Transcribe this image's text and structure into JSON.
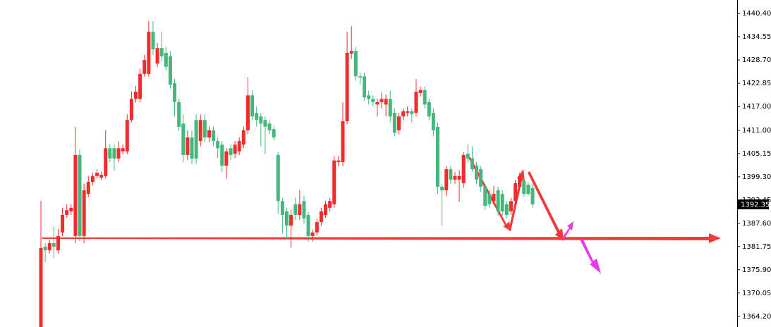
{
  "chart_data": {
    "type": "candlestick",
    "up_color": "#f22b2b",
    "down_color": "#45b77d",
    "ylim": [
      1361.5,
      1443.8
    ],
    "yticks": [
      {
        "value": 1440.4,
        "label": "1440.40"
      },
      {
        "value": 1434.55,
        "label": "1434.55"
      },
      {
        "value": 1428.7,
        "label": "1428.70"
      },
      {
        "value": 1422.85,
        "label": "1422.85"
      },
      {
        "value": 1417,
        "label": "1417.00"
      },
      {
        "value": 1411,
        "label": "1411.00"
      },
      {
        "value": 1405.15,
        "label": "1405.15"
      },
      {
        "value": 1399.3,
        "label": "1399.30"
      },
      {
        "value": 1393.45,
        "label": "1393.45"
      },
      {
        "value": 1387.6,
        "label": "1387.60"
      },
      {
        "value": 1381.75,
        "label": "1381.75"
      },
      {
        "value": 1375.9,
        "label": "1375.90"
      },
      {
        "value": 1370.05,
        "label": "1370.05"
      },
      {
        "value": 1364.2,
        "label": "1364.20"
      }
    ],
    "open": [
      1361.5,
      1381.7,
      1380.8,
      1382.6,
      1380.8,
      1385.3,
      1389.7,
      1390.6,
      1384.4,
      1404.8,
      1384.4,
      1395.0,
      1398.0,
      1399.5,
      1399.1,
      1399.5,
      1406.5,
      1406.5,
      1403.9,
      1405.7,
      1405.7,
      1413.6,
      1418.9,
      1418.9,
      1425.2,
      1425.2,
      1435.8,
      1427.8,
      1431.7,
      1430.5,
      1429.6,
      1422.9,
      1418.1,
      1412.7,
      1404.8,
      1409.2,
      1413.6,
      1408.3,
      1413.6,
      1409.2,
      1411.0,
      1408.3,
      1407.4,
      1402.1,
      1406.5,
      1405.1,
      1405.7,
      1407.4,
      1411.0,
      1419.8,
      1415.4,
      1414.5,
      1413.6,
      1412.7,
      1411.3,
      1404.8,
      1393.2,
      1390.6,
      1387.0,
      1392.4,
      1389.7,
      1393.2,
      1389.7,
      1384.4,
      1385.3,
      1387.9,
      1389.7,
      1391.5,
      1392.4,
      1403.0,
      1403.0,
      1413.3,
      1430.3,
      1431.0,
      1424.6,
      1424.6,
      1419.8,
      1418.9,
      1417.5,
      1418.1,
      1417.5,
      1418.9,
      1415.4,
      1411.0,
      1414.5,
      1415.4,
      1415.8,
      1415.4,
      1420.4,
      1421.1,
      1418.1,
      1415.4,
      1411.9,
      1396.8,
      1395.9,
      1401.2,
      1398.6,
      1398.6,
      1397.7,
      1405.1,
      1403.9,
      1402.1,
      1401.2,
      1396.8,
      1395.0,
      1393.2,
      1395.9,
      1395.0,
      1392.4,
      1390.6,
      1393.2,
      1396.8,
      1398.3,
      1397.3,
      1396.5
    ],
    "high": [
      1393.2,
      1382.6,
      1383.5,
      1386.7,
      1386.2,
      1391.5,
      1392.4,
      1392.4,
      1411.9,
      1406.2,
      1397.6,
      1399.5,
      1400.3,
      1401.2,
      1400.6,
      1411.0,
      1407.5,
      1407.5,
      1408.2,
      1407.5,
      1415.0,
      1420.8,
      1422.2,
      1426.5,
      1430.0,
      1438.5,
      1438.5,
      1433.0,
      1435.8,
      1432.0,
      1431.0,
      1424.0,
      1419.0,
      1415.0,
      1411.0,
      1411.0,
      1415.0,
      1415.0,
      1415.0,
      1412.0,
      1412.0,
      1409.2,
      1408.3,
      1406.5,
      1407.5,
      1408.3,
      1409.2,
      1412.0,
      1424.3,
      1421.0,
      1417.0,
      1415.4,
      1414.5,
      1413.6,
      1412.0,
      1405.5,
      1394.0,
      1391.5,
      1391.0,
      1394.0,
      1396.0,
      1394.5,
      1390.5,
      1386.0,
      1388.8,
      1391.5,
      1393.2,
      1394.0,
      1404.5,
      1404.5,
      1418.0,
      1435.8,
      1437.2,
      1432.0,
      1425.5,
      1425.5,
      1421.0,
      1419.8,
      1419.0,
      1420.5,
      1420.0,
      1421.0,
      1416.5,
      1415.4,
      1416.5,
      1417.0,
      1416.5,
      1423.9,
      1422.0,
      1422.0,
      1419.0,
      1416.5,
      1413.0,
      1397.5,
      1402.0,
      1402.0,
      1400.5,
      1401.0,
      1405.5,
      1407.5,
      1407.0,
      1403.0,
      1402.0,
      1397.5,
      1396.0,
      1397.0,
      1396.8,
      1396.0,
      1393.2,
      1394.0,
      1398.5,
      1400.3,
      1399.0,
      1398.0,
      1397.5
    ],
    "low": [
      1361.5,
      1377.8,
      1380.0,
      1378.9,
      1380.0,
      1384.4,
      1389.0,
      1389.7,
      1382.6,
      1383.1,
      1382.6,
      1394.2,
      1397.1,
      1398.9,
      1398.5,
      1398.9,
      1403.0,
      1400.9,
      1403.0,
      1405.0,
      1405.0,
      1413.0,
      1418.0,
      1418.0,
      1424.5,
      1424.5,
      1430.0,
      1427.0,
      1428.5,
      1426.0,
      1421.5,
      1414.5,
      1410.8,
      1403.0,
      1403.5,
      1402.5,
      1402.5,
      1407.0,
      1408.0,
      1408.0,
      1407.0,
      1404.0,
      1400.5,
      1398.9,
      1403.5,
      1404.0,
      1404.8,
      1406.5,
      1410.0,
      1413.5,
      1412.0,
      1407.0,
      1405.0,
      1410.0,
      1408.5,
      1390.0,
      1385.0,
      1383.5,
      1381.5,
      1388.5,
      1388.5,
      1387.5,
      1383.0,
      1383.0,
      1384.5,
      1387.0,
      1389.0,
      1390.5,
      1391.5,
      1402.0,
      1402.0,
      1412.5,
      1429.0,
      1423.5,
      1422.5,
      1418.5,
      1417.5,
      1417.0,
      1414.5,
      1416.5,
      1414.5,
      1413.0,
      1409.5,
      1410.0,
      1413.5,
      1414.5,
      1413.0,
      1414.5,
      1419.5,
      1416.5,
      1413.5,
      1409.5,
      1395.0,
      1387.0,
      1394.5,
      1397.5,
      1397.5,
      1393.0,
      1396.5,
      1403.0,
      1400.5,
      1397.5,
      1395.5,
      1391.0,
      1391.5,
      1392.4,
      1389.5,
      1389.5,
      1388.8,
      1389.7,
      1392.4,
      1395.9,
      1394.2,
      1394.5,
      1391.5
    ],
    "close": [
      1381.4,
      1380.8,
      1382.6,
      1381.7,
      1384.4,
      1389.7,
      1390.9,
      1391.5,
      1404.8,
      1384.4,
      1395.9,
      1398.0,
      1399.5,
      1400.3,
      1399.8,
      1406.5,
      1403.9,
      1403.9,
      1406.5,
      1406.5,
      1413.6,
      1418.9,
      1420.7,
      1425.2,
      1428.7,
      1435.8,
      1431.4,
      1431.7,
      1429.6,
      1427.0,
      1422.5,
      1418.1,
      1411.9,
      1404.8,
      1409.2,
      1403.9,
      1403.9,
      1413.6,
      1409.2,
      1411.0,
      1408.3,
      1406.5,
      1402.1,
      1405.7,
      1404.8,
      1407.4,
      1408.3,
      1411.0,
      1419.8,
      1414.5,
      1413.6,
      1412.7,
      1411.9,
      1411.0,
      1409.2,
      1393.2,
      1389.7,
      1387.0,
      1389.7,
      1389.7,
      1392.4,
      1388.8,
      1384.4,
      1385.3,
      1387.9,
      1390.6,
      1392.4,
      1393.2,
      1403.4,
      1403.4,
      1413.3,
      1430.5,
      1431.0,
      1424.6,
      1424.3,
      1419.3,
      1418.9,
      1418.1,
      1418.1,
      1418.9,
      1418.9,
      1414.5,
      1410.4,
      1414.5,
      1415.8,
      1415.8,
      1415.1,
      1420.7,
      1421.1,
      1417.5,
      1414.5,
      1411.0,
      1396.8,
      1395.9,
      1401.2,
      1398.6,
      1399.5,
      1399.5,
      1404.8,
      1403.9,
      1401.2,
      1398.6,
      1396.8,
      1392.0,
      1392.4,
      1395.0,
      1390.6,
      1390.6,
      1389.7,
      1393.2,
      1397.7,
      1399.5,
      1395.0,
      1395.0,
      1392.35
    ]
  }
}
